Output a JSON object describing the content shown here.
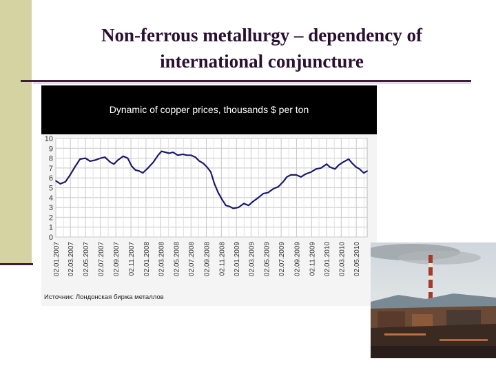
{
  "slide": {
    "title_line1": "Non-ferrous metallurgy – dependency of",
    "title_line2": "international conjuncture"
  },
  "chart_data": {
    "type": "line",
    "title": "Dynamic of copper prices, thousands $ per ton",
    "source": "Источник: Лондонская биржа металлов",
    "ylim": [
      0,
      10
    ],
    "yticks": [
      "0",
      "1",
      "2",
      "3",
      "4",
      "5",
      "6",
      "7",
      "8",
      "9",
      "10"
    ],
    "xticks": [
      "02.01.2007",
      "02.03.2007",
      "02.05.2007",
      "02.07.2007",
      "02.09.2007",
      "02.11.2007",
      "02.01.2008",
      "02.03.2008",
      "02.05.2008",
      "02.07.2008",
      "02.09.2008",
      "02.11.2008",
      "02.01.2009",
      "02.03.2009",
      "02.05.2009",
      "02.07.2009",
      "02.09.2009",
      "02.11.2009",
      "02.01.2010",
      "02.03.2010",
      "02.05.2010"
    ],
    "grid": true,
    "series": [
      {
        "color": "#1a1a6e",
        "x": [
          "2007-01-02",
          "2007-01-20",
          "2007-02-10",
          "2007-03-01",
          "2007-03-20",
          "2007-04-10",
          "2007-05-02",
          "2007-05-20",
          "2007-06-10",
          "2007-07-02",
          "2007-07-20",
          "2007-08-10",
          "2007-08-25",
          "2007-09-10",
          "2007-10-02",
          "2007-10-20",
          "2007-11-05",
          "2007-11-20",
          "2007-12-05",
          "2007-12-20",
          "2008-01-10",
          "2008-02-01",
          "2008-02-20",
          "2008-03-05",
          "2008-03-20",
          "2008-04-05",
          "2008-04-20",
          "2008-05-10",
          "2008-05-30",
          "2008-06-15",
          "2008-07-02",
          "2008-07-20",
          "2008-08-05",
          "2008-08-20",
          "2008-09-05",
          "2008-09-20",
          "2008-10-05",
          "2008-10-20",
          "2008-11-05",
          "2008-11-20",
          "2008-12-05",
          "2008-12-20",
          "2009-01-10",
          "2009-02-01",
          "2009-02-20",
          "2009-03-10",
          "2009-04-01",
          "2009-04-20",
          "2009-05-10",
          "2009-06-01",
          "2009-06-20",
          "2009-07-10",
          "2009-07-25",
          "2009-08-10",
          "2009-09-01",
          "2009-09-20",
          "2009-10-10",
          "2009-11-01",
          "2009-11-20",
          "2009-12-10",
          "2010-01-02",
          "2010-01-15",
          "2010-02-05",
          "2010-02-20",
          "2010-03-10",
          "2010-04-01",
          "2010-04-15",
          "2010-05-01",
          "2010-05-15",
          "2010-06-01",
          "2010-06-15"
        ],
        "y": [
          5.7,
          5.4,
          5.6,
          6.3,
          7.1,
          7.9,
          8.0,
          7.7,
          7.8,
          8.0,
          8.1,
          7.6,
          7.4,
          7.8,
          8.2,
          8.0,
          7.2,
          6.8,
          6.7,
          6.5,
          7.0,
          7.6,
          8.3,
          8.7,
          8.6,
          8.5,
          8.6,
          8.3,
          8.4,
          8.3,
          8.3,
          8.1,
          7.7,
          7.5,
          7.1,
          6.6,
          5.4,
          4.5,
          3.8,
          3.2,
          3.1,
          2.9,
          3.0,
          3.4,
          3.2,
          3.6,
          4.0,
          4.4,
          4.5,
          4.9,
          5.1,
          5.6,
          6.1,
          6.3,
          6.3,
          6.1,
          6.4,
          6.6,
          6.9,
          7.0,
          7.4,
          7.1,
          6.9,
          7.3,
          7.6,
          7.9,
          7.5,
          7.1,
          6.9,
          6.5,
          6.7
        ]
      }
    ]
  },
  "photo": {
    "icon": "factory-smokestack-photo"
  }
}
